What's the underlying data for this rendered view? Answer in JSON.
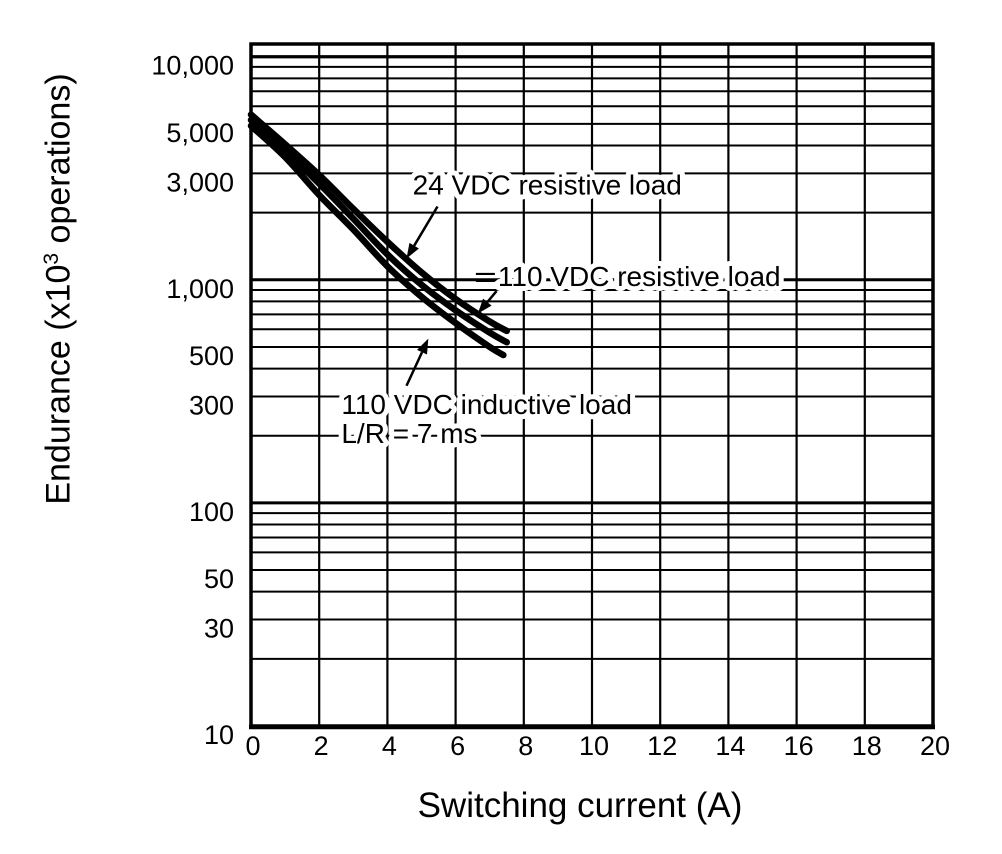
{
  "page": {
    "background": "#ffffff",
    "ink_color": "#000000"
  },
  "y_axis": {
    "label_prefix": "Endurance (x10",
    "label_sup": "3",
    "label_suffix": " operations)",
    "scale": "log",
    "range": [
      10,
      11400
    ],
    "ticks": [
      {
        "value": 10000,
        "label": "10,000"
      },
      {
        "value": 5000,
        "label": "5,000"
      },
      {
        "value": 3000,
        "label": "3,000"
      },
      {
        "value": 1000,
        "label": "1,000"
      },
      {
        "value": 500,
        "label": "500"
      },
      {
        "value": 300,
        "label": "300"
      },
      {
        "value": 100,
        "label": "100"
      },
      {
        "value": 50,
        "label": "50"
      },
      {
        "value": 30,
        "label": "30"
      },
      {
        "value": 10,
        "label": "10"
      }
    ]
  },
  "x_axis": {
    "label": "Switching current (A)",
    "scale": "linear",
    "range": [
      0,
      20
    ],
    "ticks": [
      {
        "value": 0,
        "label": "0"
      },
      {
        "value": 2,
        "label": "2"
      },
      {
        "value": 4,
        "label": "4"
      },
      {
        "value": 6,
        "label": "6"
      },
      {
        "value": 8,
        "label": "8"
      },
      {
        "value": 10,
        "label": "10"
      },
      {
        "value": 12,
        "label": "12"
      },
      {
        "value": 14,
        "label": "14"
      },
      {
        "value": 16,
        "label": "16"
      },
      {
        "value": 18,
        "label": "18"
      },
      {
        "value": 20,
        "label": "20"
      }
    ]
  },
  "chart_data": {
    "type": "line",
    "title": "",
    "xlabel": "Switching current (A)",
    "ylabel": "Endurance (x10^3 operations)",
    "x_range": [
      0,
      20
    ],
    "y_range": [
      10,
      11400
    ],
    "y_scale": "log",
    "grid": {
      "x_step": 2,
      "y_log_minor": true,
      "line_color": "#000000"
    },
    "series": [
      {
        "name": "24 VDC resistive load",
        "points": [
          [
            0,
            5500
          ],
          [
            1,
            4050
          ],
          [
            2,
            2950
          ],
          [
            3,
            2080
          ],
          [
            4,
            1480
          ],
          [
            5,
            1080
          ],
          [
            6,
            820
          ],
          [
            7,
            650
          ],
          [
            7.5,
            590
          ]
        ]
      },
      {
        "name": "110 VDC resistive load",
        "points": [
          [
            0,
            5200
          ],
          [
            1,
            3800
          ],
          [
            2,
            2700
          ],
          [
            3,
            1880
          ],
          [
            4,
            1300
          ],
          [
            5,
            950
          ],
          [
            6,
            730
          ],
          [
            7,
            580
          ],
          [
            7.5,
            525
          ]
        ]
      },
      {
        "name": "110 VDC inductive load L/R = 7 ms",
        "points": [
          [
            0,
            4900
          ],
          [
            1,
            3550
          ],
          [
            2,
            2400
          ],
          [
            3,
            1680
          ],
          [
            4,
            1150
          ],
          [
            5,
            840
          ],
          [
            6,
            640
          ],
          [
            7,
            500
          ],
          [
            7.4,
            460
          ]
        ]
      }
    ],
    "annotations": [
      {
        "lines": [
          "24 VDC resistive load"
        ],
        "at": {
          "x": 4.74,
          "y": 2640
        },
        "arrow": {
          "from": {
            "x": 5.47,
            "y": 2130
          },
          "to": {
            "x": 4.56,
            "y": 1245
          }
        }
      },
      {
        "lines": [
          "110 VDC resistive load"
        ],
        "at": {
          "x": 7.24,
          "y": 1030
        },
        "leader_dash": true,
        "arrow": {
          "from": {
            "x": 7.2,
            "y": 890
          },
          "to": {
            "x": 6.65,
            "y": 705
          }
        }
      },
      {
        "lines": [
          "110 VDC inductive load",
          "L/R = 7 ms"
        ],
        "at": {
          "x": 2.65,
          "y": 275
        },
        "arrow": {
          "from": {
            "x": 4.56,
            "y": 335
          },
          "to": {
            "x": 5.2,
            "y": 545
          }
        }
      }
    ]
  }
}
